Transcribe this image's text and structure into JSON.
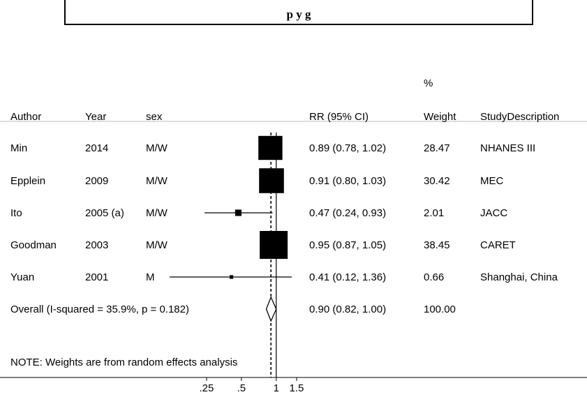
{
  "title_fragment": "p       y g",
  "chart_data": {
    "type": "forest",
    "x_scale": "log",
    "null_value": 1,
    "xlim": [
      0.115,
      1.7
    ],
    "x_ticks": [
      {
        "value": 0.25,
        "label": ".25"
      },
      {
        "value": 0.5,
        "label": ".5"
      },
      {
        "value": 1,
        "label": "1"
      },
      {
        "value": 1.5,
        "label": "1.5"
      }
    ],
    "headers": {
      "author": "Author",
      "year": "Year",
      "sex": "sex",
      "rr": "RR (95% CI)",
      "weight_pct": "%",
      "weight": "Weight",
      "desc": "StudyDescription"
    },
    "studies": [
      {
        "author": "Min",
        "year": "2014",
        "sex": "M/W",
        "rr": 0.89,
        "lo": 0.78,
        "hi": 1.02,
        "rr_text": "0.89 (0.78, 1.02)",
        "weight": 28.47,
        "weight_text": "28.47",
        "desc": "NHANES III"
      },
      {
        "author": "Epplein",
        "year": "2009",
        "sex": "M/W",
        "rr": 0.91,
        "lo": 0.8,
        "hi": 1.03,
        "rr_text": "0.91 (0.80, 1.03)",
        "weight": 30.42,
        "weight_text": "30.42",
        "desc": "MEC"
      },
      {
        "author": "Ito",
        "year": "2005 (a)",
        "sex": "M/W",
        "rr": 0.47,
        "lo": 0.24,
        "hi": 0.93,
        "rr_text": "0.47 (0.24, 0.93)",
        "weight": 2.01,
        "weight_text": "2.01",
        "desc": "JACC"
      },
      {
        "author": "Goodman",
        "year": "2003",
        "sex": "M/W",
        "rr": 0.95,
        "lo": 0.87,
        "hi": 1.05,
        "rr_text": "0.95 (0.87, 1.05)",
        "weight": 38.45,
        "weight_text": "38.45",
        "desc": "CARET"
      },
      {
        "author": "Yuan",
        "year": "2001",
        "sex": "M",
        "rr": 0.41,
        "lo": 0.12,
        "hi": 1.36,
        "rr_text": "0.41 (0.12, 1.36)",
        "weight": 0.66,
        "weight_text": "0.66",
        "desc": "Shanghai, China"
      }
    ],
    "overall": {
      "label": "Overall  (I-squared = 35.9%, p = 0.182)",
      "rr": 0.9,
      "lo": 0.82,
      "hi": 1.0,
      "rr_text": "0.90 (0.82, 1.00)",
      "weight_text": "100.00"
    },
    "note": "NOTE: Weights are from random effects analysis"
  }
}
